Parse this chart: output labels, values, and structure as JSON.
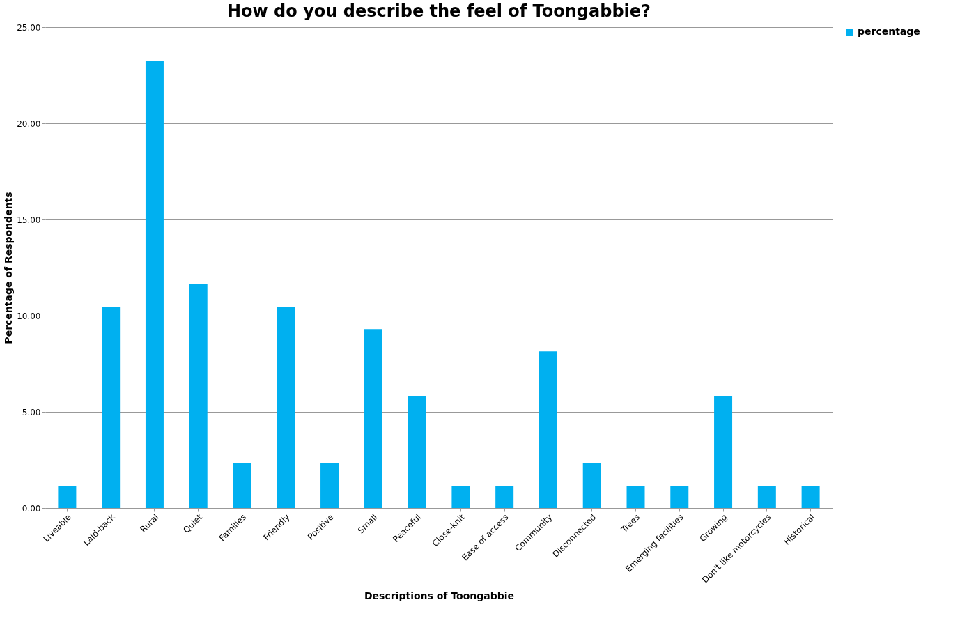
{
  "chart_data": {
    "type": "bar",
    "title": "How do you describe the feel of Toongabbie?",
    "xlabel": "Descriptions of Toongabbie",
    "ylabel": "Percentage of Respondents",
    "categories": [
      "Liveable",
      "Laid-back",
      "Rural",
      "Quiet",
      "Families",
      "Friendly",
      "Positive",
      "Small",
      "Peaceful",
      "Close-knit",
      "Ease of access",
      "Community",
      "Disconnected",
      "Trees",
      "Emerging facilities",
      "Growing",
      "Don't like motorcycles",
      "Historical"
    ],
    "series": [
      {
        "name": "percentage",
        "color": "#00b0f0",
        "values": [
          1.16,
          10.47,
          23.26,
          11.63,
          2.33,
          10.47,
          2.33,
          9.3,
          5.81,
          1.16,
          1.16,
          8.14,
          2.33,
          1.16,
          1.16,
          5.81,
          1.16,
          1.16
        ]
      }
    ],
    "ylim": [
      0,
      25
    ],
    "yticks": [
      {
        "value": 0,
        "label": "0.00"
      },
      {
        "value": 5,
        "label": "5.00"
      },
      {
        "value": 10,
        "label": "10.00"
      },
      {
        "value": 15,
        "label": "15.00"
      },
      {
        "value": 20,
        "label": "20.00"
      },
      {
        "value": 25,
        "label": "25.00"
      }
    ],
    "grid": "y",
    "legend": "right"
  }
}
